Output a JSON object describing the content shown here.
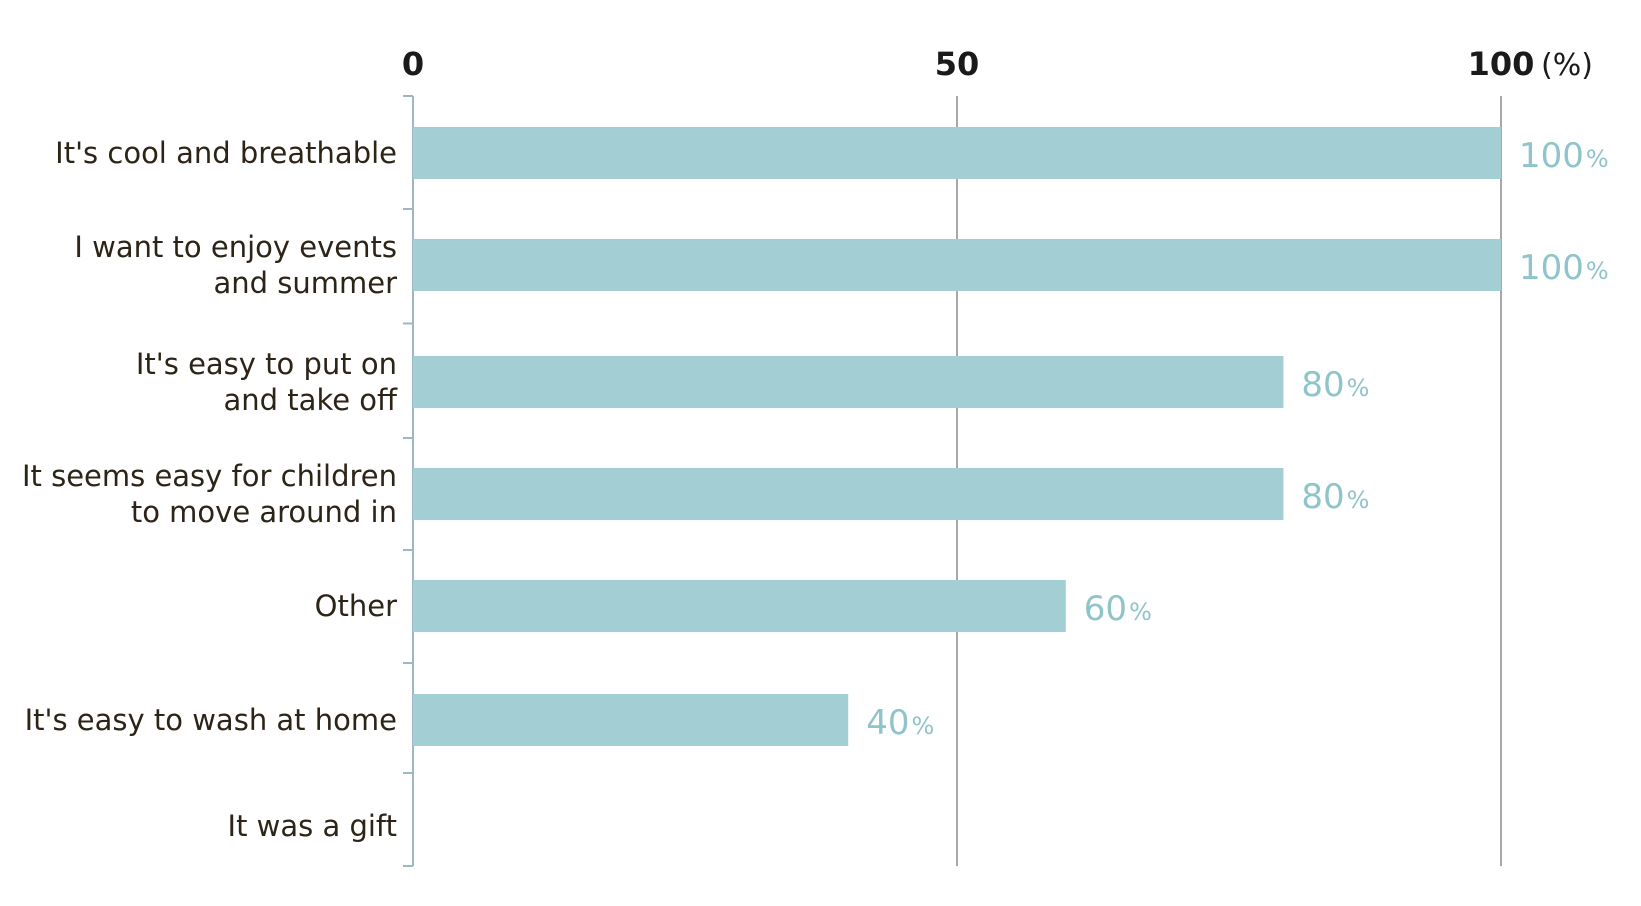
{
  "chart_data": {
    "type": "bar",
    "orientation": "horizontal",
    "categories": [
      [
        "It's cool and breathable"
      ],
      [
        "I want to enjoy events",
        "and summer"
      ],
      [
        "It's easy to put on",
        "and take off"
      ],
      [
        "It seems easy for children",
        "to move around in"
      ],
      [
        "Other"
      ],
      [
        "It's easy to wash at home"
      ],
      [
        "It was a gift"
      ]
    ],
    "values": [
      100,
      100,
      80,
      80,
      60,
      40,
      0
    ],
    "value_labels": [
      "100",
      "100",
      "80",
      "80",
      "60",
      "40",
      ""
    ],
    "value_suffix": "%",
    "xlim": [
      0,
      100
    ],
    "xticks": [
      0,
      50,
      100
    ],
    "tick_labels": [
      "0",
      "50",
      "100"
    ],
    "unit_label": "(%)",
    "grid": "vertical",
    "legend": "none",
    "colors": {
      "bar": "#a3ced3",
      "value_label": "#8ec4ca",
      "grid": "#a8a8a8",
      "axis": "#9cb8c8",
      "text": "#2d2418"
    }
  }
}
